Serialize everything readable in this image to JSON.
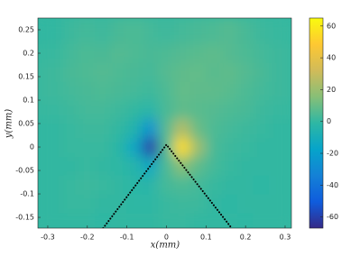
{
  "chart_data": {
    "type": "heatmap",
    "x_label": "x(mm)",
    "y_label": "y(mm)",
    "xlim": [
      -0.325,
      0.316
    ],
    "ylim": [
      -0.173,
      0.275
    ],
    "xticks": [
      -0.3,
      -0.2,
      -0.1,
      0,
      0.1,
      0.2,
      0.3
    ],
    "yticks": [
      -0.15,
      -0.1,
      -0.05,
      0,
      0.05,
      0.1,
      0.15,
      0.2,
      0.25
    ],
    "x": [
      -0.28,
      -0.24,
      -0.2,
      -0.16,
      -0.12,
      -0.08,
      -0.04,
      0,
      0.04,
      0.08,
      0.12,
      0.16,
      0.2,
      0.24,
      0.28
    ],
    "y": [
      -0.16,
      -0.12,
      -0.08,
      -0.04,
      0,
      0.04,
      0.08,
      0.12,
      0.16,
      0.2,
      0.24
    ],
    "z": [
      [
        0,
        0,
        0,
        -1,
        0,
        0,
        0,
        1,
        1,
        0,
        0,
        0,
        -1,
        0,
        0
      ],
      [
        0,
        1,
        1,
        0,
        0,
        -1,
        -1,
        1,
        2,
        2,
        0,
        -1,
        0,
        0,
        0
      ],
      [
        0,
        1,
        2,
        1,
        0,
        -2,
        -3,
        3,
        5,
        3,
        1,
        0,
        0,
        -1,
        0
      ],
      [
        0,
        0,
        1,
        0,
        -1,
        -4,
        -14,
        4,
        16,
        8,
        3,
        1,
        0,
        0,
        0
      ],
      [
        0,
        1,
        1,
        1,
        -2,
        -15,
        -60,
        5,
        55,
        20,
        4,
        2,
        1,
        0,
        0
      ],
      [
        0,
        1,
        2,
        2,
        0,
        -5,
        -25,
        6,
        25,
        10,
        5,
        3,
        2,
        1,
        0
      ],
      [
        1,
        2,
        3,
        3,
        2,
        0,
        -3,
        4,
        8,
        7,
        6,
        5,
        4,
        2,
        1
      ],
      [
        2,
        3,
        4,
        5,
        4,
        3,
        2,
        5,
        9,
        8,
        8,
        7,
        5,
        3,
        2
      ],
      [
        2,
        4,
        5,
        6,
        5,
        4,
        3,
        6,
        8,
        9,
        7,
        8,
        6,
        4,
        2
      ],
      [
        1,
        3,
        5,
        4,
        6,
        5,
        4,
        5,
        6,
        7,
        8,
        6,
        5,
        3,
        2
      ],
      [
        0,
        2,
        3,
        2,
        4,
        5,
        3,
        2,
        3,
        4,
        5,
        6,
        4,
        2,
        1
      ]
    ],
    "clim": [
      -67,
      65
    ],
    "cticks": [
      -60,
      -40,
      -20,
      0,
      20,
      40,
      60
    ],
    "colormap": [
      "#352a87",
      "#0f5cdd",
      "#1481d6",
      "#06a4ca",
      "#2eb7a4",
      "#87bf77",
      "#d1bb59",
      "#fec832",
      "#f9fb0e"
    ],
    "overlay": {
      "x": [
        -0.16,
        0,
        0.165
      ],
      "y": [
        -0.173,
        0.005,
        -0.173
      ],
      "color": "#000000"
    }
  }
}
